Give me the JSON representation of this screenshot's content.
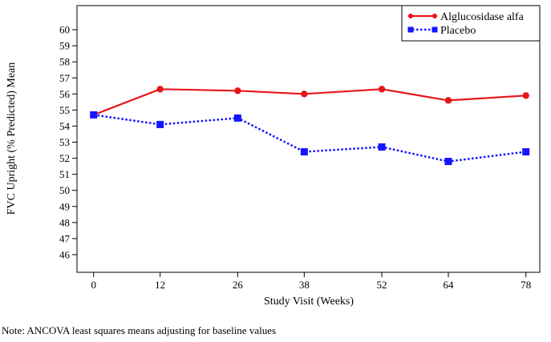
{
  "chart_data": {
    "type": "line",
    "title": "",
    "xlabel": "Study Visit (Weeks)",
    "ylabel": "FVC Upright (% Predicted) Mean",
    "x": [
      0,
      12,
      26,
      38,
      52,
      64,
      78
    ],
    "x_tick_labels": [
      "0",
      "12",
      "26",
      "38",
      "52",
      "64",
      "78"
    ],
    "y_ticks": [
      46,
      47,
      48,
      49,
      50,
      51,
      52,
      53,
      54,
      55,
      56,
      57,
      58,
      59,
      60
    ],
    "ylim": [
      44.9,
      61.5
    ],
    "xlim": [
      -3,
      80.5
    ],
    "grid": false,
    "legend_position": "top-right",
    "series": [
      {
        "name": "Alglucosidase alfa",
        "color": "#e8141b",
        "marker": "circle",
        "line": "solid",
        "values": [
          54.7,
          56.3,
          56.2,
          56.0,
          56.3,
          55.6,
          55.9
        ]
      },
      {
        "name": "Placebo",
        "color": "#1414ff",
        "marker": "square",
        "line": "dotted",
        "values": [
          54.7,
          54.1,
          54.5,
          52.4,
          52.7,
          51.8,
          52.4
        ]
      }
    ]
  },
  "note": "Note: ANCOVA least squares means adjusting for baseline values"
}
